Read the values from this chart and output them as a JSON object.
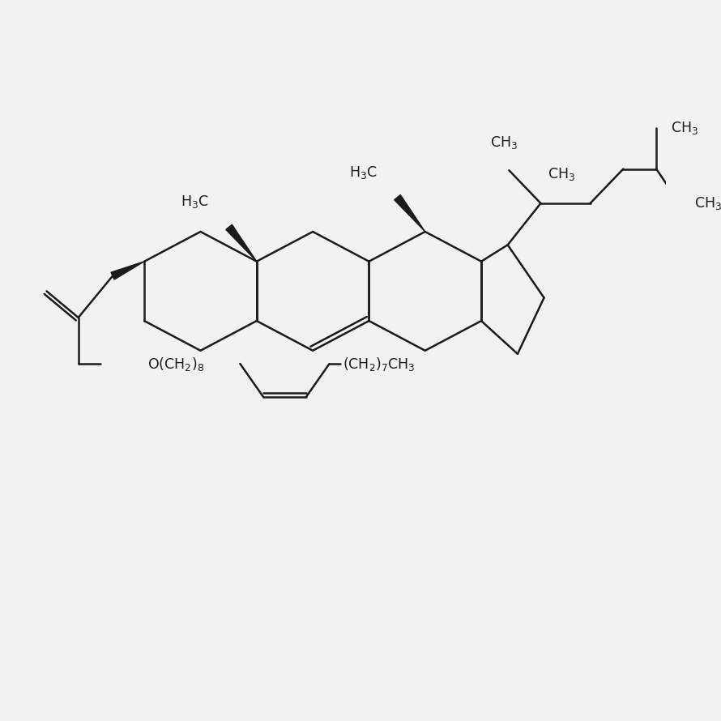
{
  "bg_color": "#f2f2f2",
  "line_color": "#1a1a1a",
  "line_width": 1.8,
  "fig_width": 8.9,
  "fig_height": 8.9,
  "dpi": 100,
  "font_size": 12.5
}
